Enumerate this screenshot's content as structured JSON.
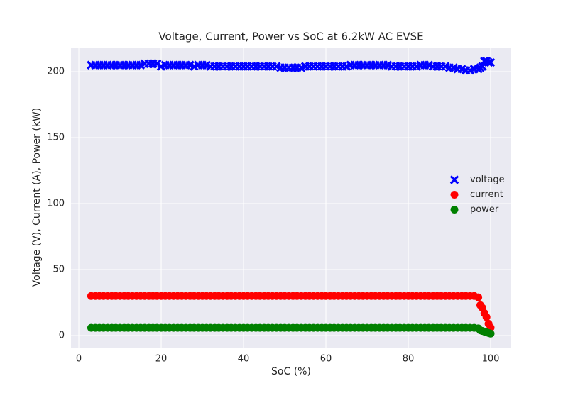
{
  "chart_data": {
    "type": "scatter",
    "title": "Voltage, Current, Power vs SoC at 6.2kW AC EVSE",
    "x_label": "SoC (%)",
    "y_label": "Voltage (V), Current (A), Power (kW)",
    "x": [
      3,
      4,
      5,
      6,
      7,
      8,
      9,
      10,
      11,
      12,
      13,
      14,
      15,
      16,
      17,
      18,
      19,
      20,
      21,
      22,
      23,
      24,
      25,
      26,
      27,
      28,
      29,
      30,
      31,
      32,
      33,
      34,
      35,
      36,
      37,
      38,
      39,
      40,
      41,
      42,
      43,
      44,
      45,
      46,
      47,
      48,
      49,
      50,
      51,
      52,
      53,
      54,
      55,
      56,
      57,
      58,
      59,
      60,
      61,
      62,
      63,
      64,
      65,
      66,
      67,
      68,
      69,
      70,
      71,
      72,
      73,
      74,
      75,
      76,
      77,
      78,
      79,
      80,
      81,
      82,
      83,
      84,
      85,
      86,
      87,
      88,
      89,
      90,
      91,
      92,
      93,
      94,
      95,
      96,
      97,
      97.5,
      98,
      98.5,
      99,
      99.5,
      100
    ],
    "series": [
      {
        "name": "voltage",
        "color": "#0000ff",
        "marker": "X",
        "values": [
          205,
          205,
          205,
          205,
          205,
          205,
          205,
          205,
          205,
          205,
          205,
          205,
          205,
          206,
          206,
          206,
          206,
          204,
          205,
          205,
          205,
          205,
          205,
          205,
          205,
          204,
          205,
          205,
          205,
          204,
          204,
          204,
          204,
          204,
          204,
          204,
          204,
          204,
          204,
          204,
          204,
          204,
          204,
          204,
          204,
          204,
          203,
          203,
          203,
          203,
          203,
          203,
          204,
          204,
          204,
          204,
          204,
          204,
          204,
          204,
          204,
          204,
          204,
          205,
          205,
          205,
          205,
          205,
          205,
          205,
          205,
          205,
          205,
          204,
          204,
          204,
          204,
          204,
          204,
          204,
          205,
          205,
          205,
          204,
          204,
          204,
          204,
          203,
          203,
          202,
          202,
          201,
          201,
          202,
          202,
          203,
          204,
          208,
          208,
          207,
          207
        ]
      },
      {
        "name": "current",
        "color": "#ff0000",
        "marker": "o",
        "values": [
          30,
          30,
          30,
          30,
          30,
          30,
          30,
          30,
          30,
          30,
          30,
          30,
          30,
          30,
          30,
          30,
          30,
          30,
          30,
          30,
          30,
          30,
          30,
          30,
          30,
          30,
          30,
          30,
          30,
          30,
          30,
          30,
          30,
          30,
          30,
          30,
          30,
          30,
          30,
          30,
          30,
          30,
          30,
          30,
          30,
          30,
          30,
          30,
          30,
          30,
          30,
          30,
          30,
          30,
          30,
          30,
          30,
          30,
          30,
          30,
          30,
          30,
          30,
          30,
          30,
          30,
          30,
          30,
          30,
          30,
          30,
          30,
          30,
          30,
          30,
          30,
          30,
          30,
          30,
          30,
          30,
          30,
          30,
          30,
          30,
          30,
          30,
          30,
          30,
          30,
          30,
          30,
          30,
          30,
          29,
          23,
          21,
          17,
          14,
          9,
          6
        ]
      },
      {
        "name": "power",
        "color": "#008000",
        "marker": "o",
        "values": [
          5.9,
          5.9,
          5.9,
          5.9,
          5.9,
          5.9,
          5.9,
          5.9,
          5.9,
          5.9,
          5.9,
          5.9,
          5.9,
          5.9,
          5.9,
          5.9,
          5.9,
          5.9,
          5.9,
          5.9,
          5.9,
          5.9,
          5.9,
          5.9,
          5.9,
          5.9,
          5.9,
          5.9,
          5.9,
          5.9,
          5.9,
          5.9,
          5.9,
          5.9,
          5.9,
          5.9,
          5.9,
          5.9,
          5.9,
          5.9,
          5.9,
          5.9,
          5.9,
          5.9,
          5.9,
          5.9,
          5.9,
          5.9,
          5.9,
          5.9,
          5.9,
          5.9,
          5.9,
          5.9,
          5.9,
          5.9,
          5.9,
          5.9,
          5.9,
          5.9,
          5.9,
          5.9,
          5.9,
          5.9,
          5.9,
          5.9,
          5.9,
          5.9,
          5.9,
          5.9,
          5.9,
          5.9,
          5.9,
          5.9,
          5.9,
          5.9,
          5.9,
          5.9,
          5.9,
          5.9,
          5.9,
          5.9,
          5.9,
          5.9,
          5.9,
          5.9,
          5.9,
          5.9,
          5.9,
          5.9,
          5.9,
          5.9,
          5.9,
          5.9,
          5.5,
          4,
          3.5,
          3,
          2.5,
          2,
          1.5
        ]
      }
    ],
    "xlim": [
      -1.9,
      105
    ],
    "ylim": [
      -9.1,
      218.3
    ],
    "xticks": [
      0,
      20,
      40,
      60,
      80,
      100
    ],
    "yticks": [
      0,
      50,
      100,
      150,
      200
    ],
    "grid": true,
    "legend": "center right"
  }
}
